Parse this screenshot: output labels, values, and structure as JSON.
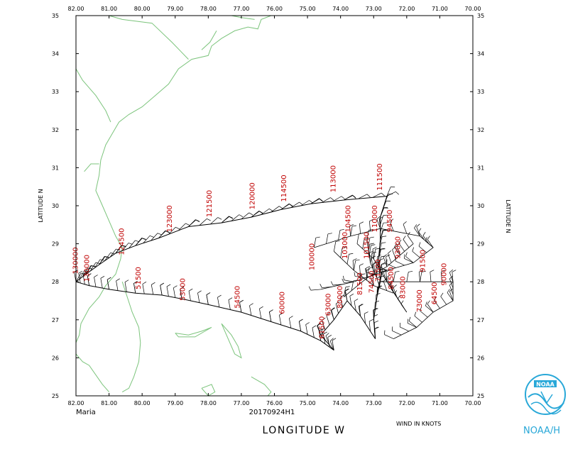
{
  "storm_name": "Maria",
  "flight_id": "20170924H1",
  "x_axis_title": "LONGITUDE  W",
  "y_axis_title_left": "LATITUDE  N",
  "y_axis_title_right": "LATITUDE  N",
  "wind_units": "WIND IN KNOTS",
  "logo_text": "NOAA/H",
  "logo_banner": "NOAA",
  "colors": {
    "coast": "#7cc47c",
    "track": "#000000",
    "labels": "#c00000",
    "logo": "#29a8d8"
  },
  "axes": {
    "lon_range": [
      -82.0,
      -70.0
    ],
    "lat_range": [
      25.0,
      35.0
    ],
    "lon_ticks": [
      "82.00",
      "81.00",
      "80.00",
      "79.00",
      "78.00",
      "77.00",
      "76.00",
      "75.00",
      "74.00",
      "73.00",
      "72.00",
      "71.00",
      "70.00"
    ],
    "lat_ticks": [
      "25",
      "26",
      "27",
      "28",
      "29",
      "30",
      "31",
      "32",
      "33",
      "34",
      "35"
    ]
  },
  "time_labels": [
    {
      "text": "130000",
      "lon": -81.95,
      "lat": 28.2
    },
    {
      "text": "130000",
      "lon": -81.6,
      "lat": 28.0
    },
    {
      "text": "124500",
      "lon": -80.55,
      "lat": 28.7
    },
    {
      "text": "123000",
      "lon": -79.1,
      "lat": 29.3
    },
    {
      "text": "121500",
      "lon": -77.9,
      "lat": 29.7
    },
    {
      "text": "120000",
      "lon": -76.6,
      "lat": 29.9
    },
    {
      "text": "114500",
      "lon": -75.65,
      "lat": 30.1
    },
    {
      "text": "113000",
      "lon": -74.15,
      "lat": 30.35
    },
    {
      "text": "111500",
      "lon": -72.75,
      "lat": 30.4
    },
    {
      "text": "51500",
      "lon": -80.05,
      "lat": 27.8
    },
    {
      "text": "53000",
      "lon": -78.7,
      "lat": 27.5
    },
    {
      "text": "54500",
      "lon": -77.05,
      "lat": 27.3
    },
    {
      "text": "60000",
      "lon": -75.7,
      "lat": 27.15
    },
    {
      "text": "61500",
      "lon": -74.5,
      "lat": 26.5
    },
    {
      "text": "104500",
      "lon": -73.7,
      "lat": 29.3
    },
    {
      "text": "110000",
      "lon": -72.9,
      "lat": 29.3
    },
    {
      "text": "103000",
      "lon": -73.8,
      "lat": 28.6
    },
    {
      "text": "101500",
      "lon": -73.15,
      "lat": 28.6
    },
    {
      "text": "100000",
      "lon": -74.8,
      "lat": 28.3
    },
    {
      "text": "94500",
      "lon": -72.45,
      "lat": 29.3
    },
    {
      "text": "93000",
      "lon": -72.2,
      "lat": 28.6
    },
    {
      "text": "91500",
      "lon": -71.45,
      "lat": 28.25
    },
    {
      "text": "90000",
      "lon": -70.8,
      "lat": 27.9
    },
    {
      "text": "84500",
      "lon": -72.4,
      "lat": 27.8
    },
    {
      "text": "83000",
      "lon": -72.05,
      "lat": 27.55
    },
    {
      "text": "81500",
      "lon": -73.35,
      "lat": 27.65
    },
    {
      "text": "80000",
      "lon": -73.95,
      "lat": 27.3
    },
    {
      "text": "74500",
      "lon": -73.0,
      "lat": 27.7
    },
    {
      "text": "73000",
      "lon": -71.55,
      "lat": 27.2
    },
    {
      "text": "71500",
      "lon": -72.8,
      "lat": 28.0
    },
    {
      "text": "63000",
      "lon": -74.3,
      "lat": 27.1
    },
    {
      "text": "64500",
      "lon": -71.1,
      "lat": 27.4
    }
  ]
}
